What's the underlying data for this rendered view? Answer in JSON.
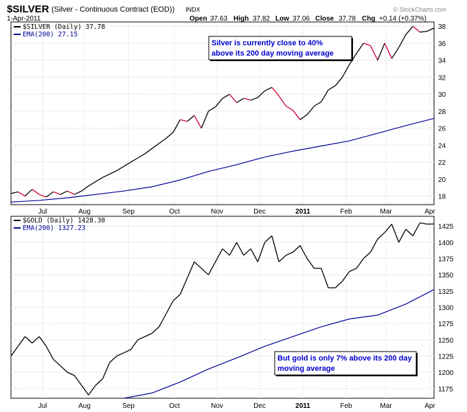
{
  "header": {
    "symbol": "$SILVER",
    "description": "(Silver - Continuous Contract (EOD))",
    "exchange": "INDX",
    "date": "1-Apr-2011",
    "open_label": "Open",
    "open": "37.63",
    "high_label": "High",
    "high": "37.82",
    "low_label": "Low",
    "low": "37.06",
    "close_label": "Close",
    "close": "37.78",
    "chg_label": "Chg",
    "chg": "+0.14 (+0.37%)",
    "watermark": "© StockCharts.com"
  },
  "colors": {
    "price_up": "#000000",
    "price_down": "#cc0033",
    "ema": "#000099",
    "annotation": "#0000cc",
    "grid": "#c8c8c8"
  },
  "months": [
    "Jul",
    "Aug",
    "Sep",
    "Oct",
    "Nov",
    "Dec",
    "2011",
    "Feb",
    "Mar",
    "Apr"
  ],
  "chart_data": [
    {
      "type": "line",
      "panel": "top",
      "legend": [
        {
          "text": "$SILVER (Daily) 37.78",
          "color": "#000000"
        },
        {
          "text": "EMA(200) 27.15",
          "color": "#000099"
        }
      ],
      "annotation": [
        "Silver is currently close to 40%",
        "above its 200 day moving average"
      ],
      "ylim": [
        17,
        38.5
      ],
      "yticks": [
        "18",
        "20",
        "22",
        "24",
        "26",
        "28",
        "30",
        "32",
        "34",
        "36",
        "38"
      ],
      "series": [
        {
          "name": "$SILVER (Daily) 37.78",
          "x": [
            0,
            5,
            10,
            15,
            20,
            25,
            30,
            35,
            40,
            45,
            50,
            55,
            60,
            65,
            70,
            75,
            80,
            85,
            90,
            95,
            100,
            105,
            110,
            115,
            120,
            125,
            130,
            135,
            140,
            145,
            150,
            155,
            160,
            165,
            170,
            175,
            180,
            185,
            190,
            195,
            200,
            205,
            210,
            215,
            220,
            225,
            230,
            235,
            240,
            245,
            250,
            255,
            260,
            265,
            270,
            275,
            280,
            285,
            290,
            295,
            300
          ],
          "values": [
            18.3,
            18.5,
            18.0,
            18.8,
            18.2,
            17.9,
            18.5,
            18.2,
            18.6,
            18.2,
            18.6,
            19.2,
            19.7,
            20.2,
            20.6,
            21.0,
            21.5,
            22.0,
            22.5,
            23.0,
            23.6,
            24.2,
            24.8,
            25.5,
            27.0,
            26.8,
            27.5,
            26.0,
            28.0,
            28.5,
            29.5,
            30.0,
            29.0,
            29.5,
            29.3,
            29.6,
            30.4,
            30.8,
            29.8,
            28.6,
            28.1,
            27.0,
            27.6,
            28.6,
            29.1,
            30.5,
            31.0,
            32.0,
            33.5,
            34.8,
            36.0,
            35.7,
            34.0,
            36.0,
            34.2,
            35.5,
            37.0,
            38.0,
            37.3,
            37.4,
            37.78
          ]
        },
        {
          "name": "EMA(200) 27.15",
          "x": [
            0,
            20,
            40,
            60,
            80,
            100,
            120,
            140,
            160,
            180,
            200,
            220,
            240,
            260,
            280,
            300
          ],
          "values": [
            17.3,
            17.5,
            17.8,
            18.2,
            18.6,
            19.1,
            19.9,
            20.9,
            21.7,
            22.6,
            23.3,
            23.9,
            24.5,
            25.4,
            26.3,
            27.15
          ]
        }
      ]
    },
    {
      "type": "line",
      "panel": "bottom",
      "legend": [
        {
          "text": "$GOLD (Daily) 1428.30",
          "color": "#000000"
        },
        {
          "text": "EMA(200) 1327.23",
          "color": "#000099"
        }
      ],
      "annotation": [
        "But gold is only 7% above its 200 day",
        "moving average"
      ],
      "ylim": [
        1160,
        1440
      ],
      "yticks": [
        "1175",
        "1200",
        "1225",
        "1250",
        "1275",
        "1300",
        "1325",
        "1350",
        "1375",
        "1400",
        "1425"
      ],
      "series": [
        {
          "name": "$GOLD (Daily) 1428.30",
          "x": [
            0,
            5,
            10,
            15,
            20,
            25,
            30,
            35,
            40,
            45,
            50,
            55,
            60,
            65,
            70,
            75,
            80,
            85,
            90,
            95,
            100,
            105,
            110,
            115,
            120,
            125,
            130,
            135,
            140,
            145,
            150,
            155,
            160,
            165,
            170,
            175,
            180,
            185,
            190,
            195,
            200,
            205,
            210,
            215,
            220,
            225,
            230,
            235,
            240,
            245,
            250,
            255,
            260,
            265,
            270,
            275,
            280,
            285,
            290,
            295,
            300
          ],
          "values": [
            1225,
            1240,
            1255,
            1245,
            1255,
            1240,
            1220,
            1210,
            1200,
            1195,
            1180,
            1165,
            1180,
            1190,
            1215,
            1225,
            1230,
            1235,
            1250,
            1255,
            1260,
            1270,
            1290,
            1310,
            1320,
            1345,
            1370,
            1360,
            1350,
            1370,
            1390,
            1380,
            1400,
            1380,
            1390,
            1370,
            1400,
            1410,
            1370,
            1380,
            1385,
            1395,
            1375,
            1360,
            1360,
            1330,
            1330,
            1340,
            1355,
            1360,
            1375,
            1385,
            1405,
            1415,
            1428,
            1400,
            1420,
            1410,
            1430,
            1428,
            1428.3
          ]
        },
        {
          "name": "EMA(200) 1327.23",
          "x": [
            80,
            100,
            120,
            140,
            160,
            180,
            200,
            220,
            240,
            260,
            280,
            300
          ],
          "values": [
            1160,
            1168,
            1185,
            1205,
            1222,
            1240,
            1255,
            1270,
            1282,
            1288,
            1305,
            1327.23
          ]
        }
      ]
    }
  ]
}
